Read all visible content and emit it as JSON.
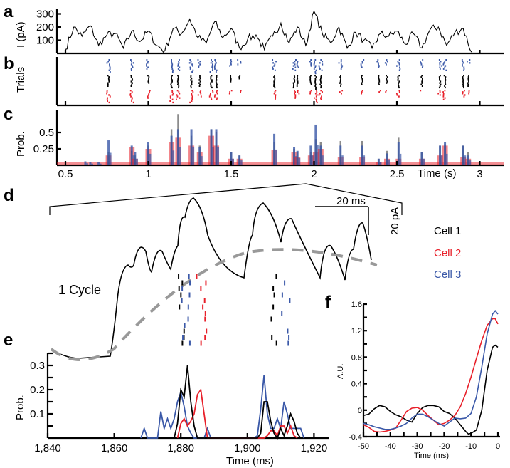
{
  "panel_labels": {
    "a": "a",
    "b": "b",
    "c": "c",
    "d": "d",
    "e": "e",
    "f": "f"
  },
  "colors": {
    "cell1": "#000000",
    "cell2": "#e8202a",
    "cell3": "#3a58a8",
    "scale_dash": "#999999"
  },
  "chart_data": [
    {
      "id": "a",
      "type": "line",
      "ylabel": "I (pA)",
      "yticks": [
        "100",
        "200",
        "300"
      ],
      "ylim": [
        0,
        330
      ],
      "xlim": [
        0.45,
        3.15
      ],
      "x_start": 0.5,
      "x_step": 0.05,
      "values": [
        30,
        200,
        130,
        210,
        60,
        140,
        150,
        40,
        170,
        90,
        170,
        60,
        20,
        190,
        150,
        260,
        120,
        80,
        240,
        120,
        190,
        40,
        110,
        140,
        30,
        130,
        230,
        80,
        200,
        60,
        320,
        150,
        80,
        200,
        40,
        160,
        100,
        40,
        150,
        130,
        170,
        70,
        150,
        40,
        180,
        200,
        60,
        160,
        190,
        10
      ]
    },
    {
      "id": "b",
      "type": "raster",
      "ylabel": "Trials",
      "series_order": [
        "Cell 3",
        "Cell 1",
        "Cell 2"
      ],
      "bursts": [
        {
          "t": 0.76,
          "cell1": 8,
          "cell3": 9,
          "cell2": 9
        },
        {
          "t": 0.9,
          "cell1": 8,
          "cell3": 8,
          "cell2": 9
        },
        {
          "t": 1.0,
          "cell1": 6,
          "cell3": 7,
          "cell2": 6
        },
        {
          "t": 1.14,
          "cell1": 9,
          "cell3": 9,
          "cell2": 9
        },
        {
          "t": 1.18,
          "cell1": 9,
          "cell3": 8,
          "cell2": 7
        },
        {
          "t": 1.26,
          "cell1": 9,
          "cell3": 9,
          "cell2": 9
        },
        {
          "t": 1.31,
          "cell1": 8,
          "cell3": 6,
          "cell2": 5
        },
        {
          "t": 1.38,
          "cell1": 9,
          "cell3": 9,
          "cell2": 7
        },
        {
          "t": 1.41,
          "cell1": 9,
          "cell3": 9,
          "cell2": 7
        },
        {
          "t": 1.5,
          "cell1": 5,
          "cell3": 5,
          "cell2": 3
        },
        {
          "t": 1.55,
          "cell1": 3,
          "cell3": 4,
          "cell2": 2
        },
        {
          "t": 1.76,
          "cell1": 9,
          "cell3": 8,
          "cell2": 7
        },
        {
          "t": 1.88,
          "cell1": 9,
          "cell3": 8,
          "cell2": 6
        },
        {
          "t": 1.9,
          "cell1": 8,
          "cell3": 6,
          "cell2": 3
        },
        {
          "t": 1.98,
          "cell1": 7,
          "cell3": 5,
          "cell2": 3
        },
        {
          "t": 2.01,
          "cell1": 10,
          "cell3": 10,
          "cell2": 9
        },
        {
          "t": 2.04,
          "cell1": 9,
          "cell3": 8,
          "cell2": 7
        },
        {
          "t": 2.16,
          "cell1": 8,
          "cell3": 7,
          "cell2": 3
        },
        {
          "t": 2.29,
          "cell1": 7,
          "cell3": 6,
          "cell2": 3
        },
        {
          "t": 2.39,
          "cell1": 7,
          "cell3": 6,
          "cell2": 2
        },
        {
          "t": 2.44,
          "cell1": 6,
          "cell3": 4,
          "cell2": 2
        },
        {
          "t": 2.51,
          "cell1": 9,
          "cell3": 8,
          "cell2": 5
        },
        {
          "t": 2.65,
          "cell1": 8,
          "cell3": 6,
          "cell2": 1
        },
        {
          "t": 2.76,
          "cell1": 9,
          "cell3": 7,
          "cell2": 4
        },
        {
          "t": 2.79,
          "cell1": 9,
          "cell3": 8,
          "cell2": 7
        },
        {
          "t": 2.9,
          "cell1": 9,
          "cell3": 8,
          "cell2": 5
        },
        {
          "t": 2.93,
          "cell1": 8,
          "cell3": 3,
          "cell2": 3
        }
      ]
    },
    {
      "id": "c",
      "type": "bar",
      "ylabel": "Prob.",
      "yticks": [
        "0.25",
        "0.5"
      ],
      "ylim": [
        0,
        0.8
      ],
      "xlabel": "Time (s)",
      "xticks": [
        "0.5",
        "1",
        "1.5",
        "2",
        "2.5",
        "3"
      ],
      "peaks": [
        [
          0.62,
          0,
          0.06,
          0
        ],
        [
          0.65,
          0,
          0.05,
          0
        ],
        [
          0.7,
          0,
          0.05,
          0
        ],
        [
          0.76,
          0.2,
          0.38,
          0.15
        ],
        [
          0.9,
          0.22,
          0.3,
          0.28
        ],
        [
          0.92,
          0.15,
          0.2,
          0.1
        ],
        [
          1.0,
          0.3,
          0.35,
          0.25
        ],
        [
          1.14,
          0.55,
          0.45,
          0.35
        ],
        [
          1.18,
          0.78,
          0.55,
          0.42
        ],
        [
          1.26,
          0.45,
          0.55,
          0.3
        ],
        [
          1.31,
          0.3,
          0.28,
          0.2
        ],
        [
          1.38,
          0.55,
          0.55,
          0.45
        ],
        [
          1.41,
          0.5,
          0.55,
          0.3
        ],
        [
          1.5,
          0.2,
          0.2,
          0.1
        ],
        [
          1.55,
          0.15,
          0.15,
          0.1
        ],
        [
          1.76,
          0.35,
          0.48,
          0.23
        ],
        [
          1.88,
          0.25,
          0.28,
          0.2
        ],
        [
          1.9,
          0.2,
          0.22,
          0.12
        ],
        [
          1.98,
          0.2,
          0.3,
          0.15
        ],
        [
          2.01,
          0.4,
          0.62,
          0.2
        ],
        [
          2.04,
          0.35,
          0.3,
          0.25
        ],
        [
          2.16,
          0.37,
          0.3,
          0.12
        ],
        [
          2.29,
          0.37,
          0.3,
          0.12
        ],
        [
          2.39,
          0.1,
          0.1,
          0.05
        ],
        [
          2.44,
          0.22,
          0.18,
          0.1
        ],
        [
          2.51,
          0.42,
          0.35,
          0.1
        ],
        [
          2.65,
          0.2,
          0.2,
          0.1
        ],
        [
          2.76,
          0.3,
          0.3,
          0.15
        ],
        [
          2.79,
          0.32,
          0.35,
          0.3
        ],
        [
          2.9,
          0.3,
          0.3,
          0.12
        ],
        [
          2.93,
          0.2,
          0.15,
          0.1
        ]
      ]
    },
    {
      "id": "d",
      "type": "trace",
      "scalebar_time": "20 ms",
      "scalebar_current": "20 pA",
      "cycle_label": "1 Cycle",
      "legend": [
        "Cell 1",
        "Cell 2",
        "Cell 3"
      ]
    },
    {
      "id": "e",
      "type": "line",
      "ylabel": "Prob.",
      "yticks": [
        "0.1",
        "0.2",
        "0.3"
      ],
      "ylim": [
        0,
        0.35
      ],
      "xlabel": "Time (ms)",
      "xticks": [
        "1,840",
        "1,860",
        "1,880",
        "1,900",
        "1,920"
      ],
      "xlim": [
        1840,
        1925
      ],
      "series": [
        {
          "name": "Cell 3",
          "color": "#3a58a8",
          "points": [
            [
              1868,
              0
            ],
            [
              1869,
              0.04
            ],
            [
              1870,
              0
            ],
            [
              1873,
              0
            ],
            [
              1874,
              0.11
            ],
            [
              1875,
              0.04
            ],
            [
              1876,
              0.08
            ],
            [
              1877,
              0.04
            ],
            [
              1878,
              0.08
            ],
            [
              1879,
              0.15
            ],
            [
              1880,
              0.19
            ],
            [
              1881,
              0.13
            ],
            [
              1882,
              0.05
            ],
            [
              1883,
              0.02
            ],
            [
              1884,
              0
            ],
            [
              1887,
              0
            ],
            [
              1888,
              0.04
            ],
            [
              1889,
              0
            ],
            [
              1902,
              0
            ],
            [
              1903,
              0.01
            ],
            [
              1904,
              0.12
            ],
            [
              1905,
              0.26
            ],
            [
              1906,
              0.1
            ],
            [
              1907,
              0.04
            ],
            [
              1908,
              0.04
            ],
            [
              1909,
              0.08
            ],
            [
              1910,
              0.04
            ],
            [
              1911,
              0.15
            ],
            [
              1912,
              0.1
            ],
            [
              1913,
              0.04
            ],
            [
              1914,
              0.04
            ],
            [
              1916,
              0.04
            ],
            [
              1917,
              0
            ]
          ]
        },
        {
          "name": "Cell 2",
          "color": "#e8202a",
          "points": [
            [
              1879,
              0
            ],
            [
              1880,
              0.06
            ],
            [
              1881,
              0.08
            ],
            [
              1882,
              0.05
            ],
            [
              1883,
              0.07
            ],
            [
              1884,
              0.1
            ],
            [
              1885,
              0.18
            ],
            [
              1886,
              0.2
            ],
            [
              1887,
              0.1
            ],
            [
              1888,
              0
            ],
            [
              1905,
              0
            ],
            [
              1906,
              0.01
            ],
            [
              1907,
              0.03
            ],
            [
              1908,
              0.03
            ],
            [
              1909,
              0.01
            ],
            [
              1910,
              0.05
            ],
            [
              1911,
              0.05
            ],
            [
              1912,
              0.02
            ],
            [
              1913,
              0.05
            ],
            [
              1914,
              0.01
            ],
            [
              1915,
              0
            ]
          ]
        },
        {
          "name": "Cell 1",
          "color": "#000000",
          "points": [
            [
              1878,
              0
            ],
            [
              1879,
              0.06
            ],
            [
              1880,
              0.2
            ],
            [
              1881,
              0.17
            ],
            [
              1882,
              0.3
            ],
            [
              1883,
              0.15
            ],
            [
              1884,
              0.05
            ],
            [
              1885,
              0
            ],
            [
              1903,
              0
            ],
            [
              1904,
              0.02
            ],
            [
              1905,
              0.15
            ],
            [
              1906,
              0.15
            ],
            [
              1907,
              0.07
            ],
            [
              1908,
              0.02
            ],
            [
              1909,
              0
            ],
            [
              1910,
              0.04
            ],
            [
              1911,
              0.01
            ],
            [
              1912,
              0.05
            ],
            [
              1913,
              0.1
            ],
            [
              1914,
              0.07
            ],
            [
              1915,
              0.02
            ],
            [
              1916,
              0
            ]
          ]
        }
      ]
    },
    {
      "id": "f",
      "type": "line",
      "ylabel": "A.U.",
      "yticks": [
        "-0.4",
        "0",
        "0.4",
        "0.8",
        "1.2",
        "1.6"
      ],
      "ylim": [
        -0.4,
        1.6
      ],
      "xlabel": "Time (ms)",
      "xticks": [
        "-50",
        "-40",
        "-30",
        "-20",
        "-10",
        "0"
      ],
      "xlim": [
        -50,
        0
      ],
      "series": [
        {
          "name": "Cell 1",
          "color": "#000000",
          "points": [
            [
              -50,
              -0.08
            ],
            [
              -48,
              -0.06
            ],
            [
              -46,
              0.02
            ],
            [
              -44,
              0.07
            ],
            [
              -42,
              0.05
            ],
            [
              -40,
              -0.02
            ],
            [
              -38,
              -0.07
            ],
            [
              -36,
              -0.1
            ],
            [
              -34,
              -0.15
            ],
            [
              -32,
              -0.18
            ],
            [
              -30,
              -0.05
            ],
            [
              -28,
              0.04
            ],
            [
              -26,
              0.07
            ],
            [
              -24,
              0.07
            ],
            [
              -22,
              0.05
            ],
            [
              -20,
              -0.02
            ],
            [
              -18,
              -0.05
            ],
            [
              -16,
              -0.12
            ],
            [
              -14,
              -0.22
            ],
            [
              -12,
              -0.32
            ],
            [
              -11,
              -0.36
            ],
            [
              -10,
              -0.35
            ],
            [
              -8,
              -0.3
            ],
            [
              -6,
              0
            ],
            [
              -4,
              0.6
            ],
            [
              -2,
              0.95
            ],
            [
              -1,
              0.98
            ],
            [
              0,
              0.95
            ]
          ]
        },
        {
          "name": "Cell 2",
          "color": "#e8202a",
          "points": [
            [
              -50,
              -0.22
            ],
            [
              -48,
              -0.26
            ],
            [
              -46,
              -0.32
            ],
            [
              -44,
              -0.33
            ],
            [
              -42,
              -0.32
            ],
            [
              -40,
              -0.3
            ],
            [
              -38,
              -0.27
            ],
            [
              -36,
              -0.15
            ],
            [
              -34,
              -0.02
            ],
            [
              -32,
              0.03
            ],
            [
              -30,
              0.04
            ],
            [
              -28,
              0.0
            ],
            [
              -26,
              -0.08
            ],
            [
              -24,
              -0.15
            ],
            [
              -22,
              -0.22
            ],
            [
              -20,
              -0.2
            ],
            [
              -18,
              -0.15
            ],
            [
              -16,
              -0.08
            ],
            [
              -14,
              0.05
            ],
            [
              -12,
              0.25
            ],
            [
              -10,
              0.5
            ],
            [
              -8,
              0.78
            ],
            [
              -6,
              1.05
            ],
            [
              -4,
              1.28
            ],
            [
              -2,
              1.38
            ],
            [
              -1,
              1.38
            ],
            [
              0,
              1.3
            ]
          ]
        },
        {
          "name": "Cell 3",
          "color": "#3a58a8",
          "points": [
            [
              -50,
              -0.2
            ],
            [
              -48,
              -0.22
            ],
            [
              -46,
              -0.25
            ],
            [
              -44,
              -0.27
            ],
            [
              -42,
              -0.29
            ],
            [
              -40,
              -0.29
            ],
            [
              -38,
              -0.27
            ],
            [
              -36,
              -0.24
            ],
            [
              -34,
              -0.2
            ],
            [
              -32,
              -0.12
            ],
            [
              -30,
              -0.06
            ],
            [
              -28,
              -0.06
            ],
            [
              -26,
              -0.1
            ],
            [
              -24,
              -0.15
            ],
            [
              -22,
              -0.2
            ],
            [
              -20,
              -0.24
            ],
            [
              -18,
              -0.18
            ],
            [
              -16,
              -0.12
            ],
            [
              -14,
              -0.13
            ],
            [
              -12,
              -0.12
            ],
            [
              -10,
              -0.05
            ],
            [
              -8,
              0.2
            ],
            [
              -6,
              0.65
            ],
            [
              -4,
              1.15
            ],
            [
              -2,
              1.45
            ],
            [
              -1,
              1.5
            ],
            [
              0,
              1.45
            ]
          ]
        }
      ]
    }
  ]
}
